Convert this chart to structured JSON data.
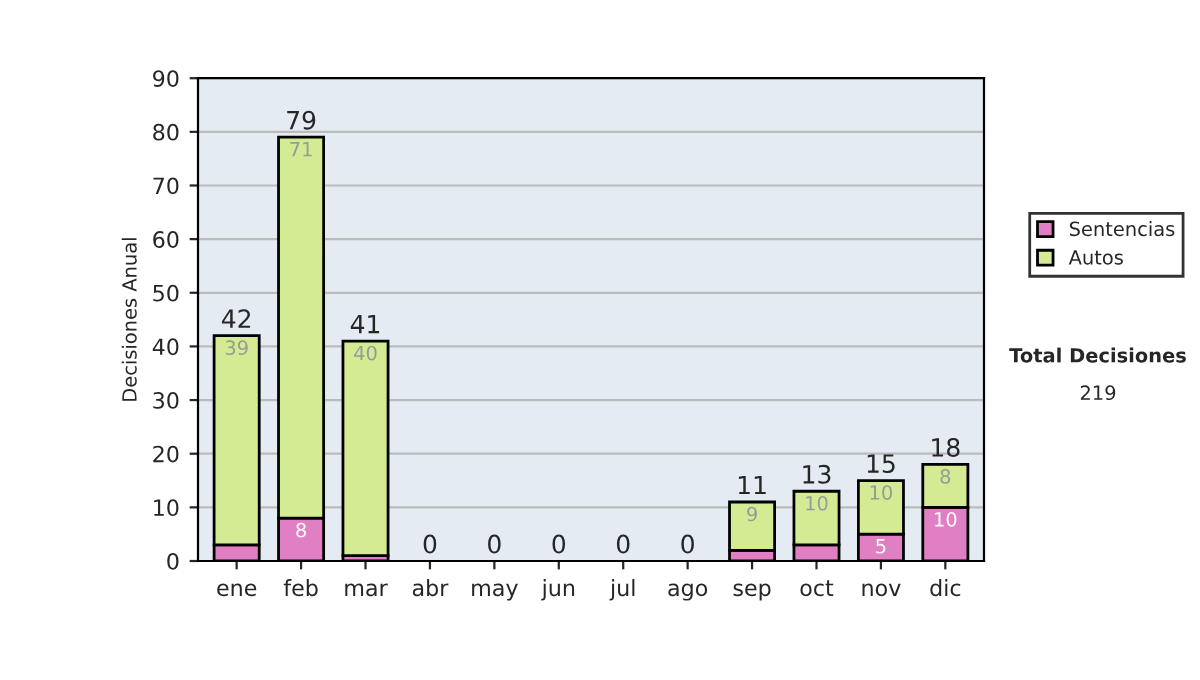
{
  "chart_data": {
    "type": "bar",
    "stacked": true,
    "ylabel": "Decisiones Anual",
    "categories": [
      "ene",
      "feb",
      "mar",
      "abr",
      "may",
      "jun",
      "jul",
      "ago",
      "sep",
      "oct",
      "nov",
      "dic"
    ],
    "series": [
      {
        "name": "Sentencias",
        "color": "#e07fc4",
        "values": [
          3,
          8,
          1,
          0,
          0,
          0,
          0,
          0,
          2,
          3,
          5,
          10
        ],
        "value_labels": [
          null,
          "8",
          null,
          null,
          null,
          null,
          null,
          null,
          null,
          null,
          "5",
          "10"
        ]
      },
      {
        "name": "Autos",
        "color": "#d3ec93",
        "values": [
          39,
          71,
          40,
          0,
          0,
          0,
          0,
          0,
          9,
          10,
          10,
          8
        ],
        "value_labels": [
          "39",
          "71",
          "40",
          null,
          null,
          null,
          null,
          null,
          "9",
          "10",
          "10",
          "8"
        ]
      }
    ],
    "totals": [
      "42",
      "79",
      "41",
      "0",
      "0",
      "0",
      "0",
      "0",
      "11",
      "13",
      "15",
      "18"
    ],
    "ylim": [
      0,
      90
    ],
    "yticks": [
      0,
      10,
      20,
      30,
      40,
      50,
      60,
      70,
      80,
      90
    ],
    "grid": "y",
    "legend": "right",
    "annotations": [
      "Total Decisiones",
      "219"
    ]
  }
}
